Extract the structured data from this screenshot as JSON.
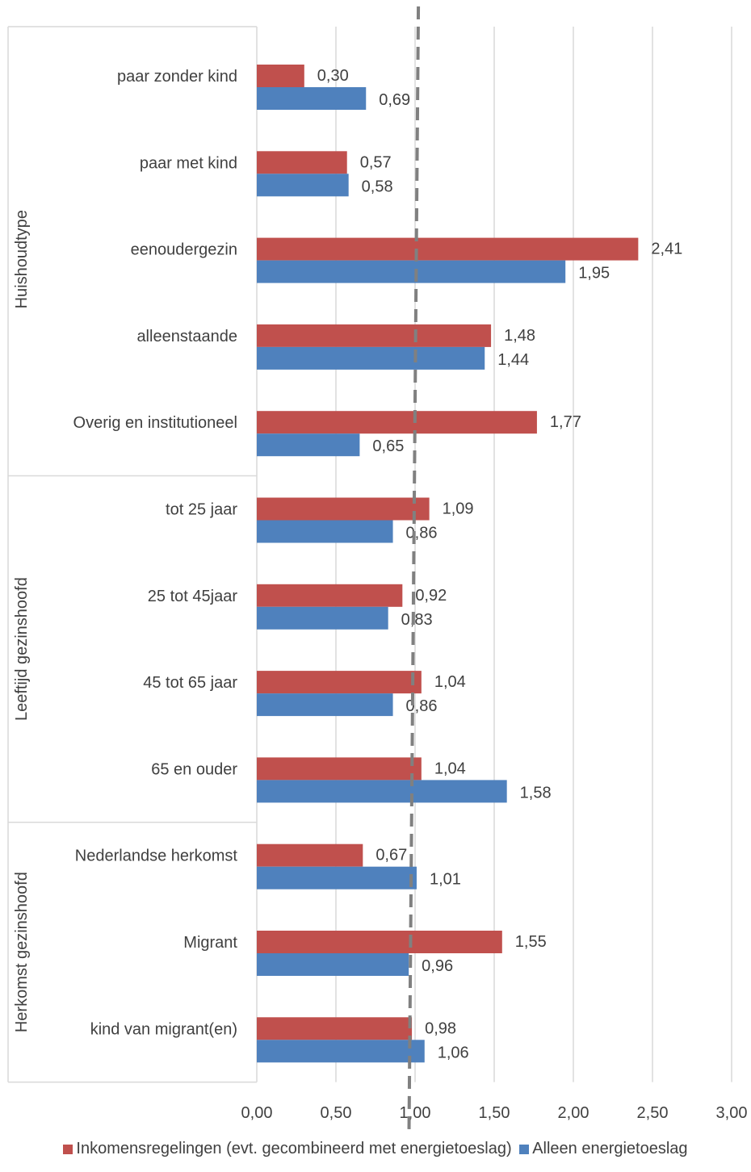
{
  "chart_data": {
    "type": "bar",
    "orientation": "horizontal",
    "groups": [
      {
        "label": "Huishoudtype",
        "categories": [
          "paar zonder kind",
          "paar met kind",
          "eenoudergezin",
          "alleenstaande",
          "Overig en institutioneel"
        ]
      },
      {
        "label": "Leeftijd gezinshoofd",
        "categories": [
          "tot 25 jaar",
          "25 tot 45jaar",
          "45 tot 65 jaar",
          "65 en ouder"
        ]
      },
      {
        "label": "Herkomst gezinshoofd",
        "categories": [
          "Nederlandse herkomst",
          "Migrant",
          "kind van migrant(en)"
        ]
      }
    ],
    "categories": [
      "paar zonder kind",
      "paar met kind",
      "eenoudergezin",
      "alleenstaande",
      "Overig en institutioneel",
      "tot 25 jaar",
      "25 tot 45jaar",
      "45 tot 65 jaar",
      "65 en ouder",
      "Nederlandse herkomst",
      "Migrant",
      "kind van migrant(en)"
    ],
    "series": [
      {
        "name": "Inkomensregelingen (evt. gecombineerd met energietoeslag)",
        "color": "#c0504d",
        "values": [
          0.3,
          0.57,
          2.41,
          1.48,
          1.77,
          1.09,
          0.92,
          1.04,
          1.04,
          0.67,
          1.55,
          0.98
        ],
        "labels": [
          "0,30",
          "0,57",
          "2,41",
          "1,48",
          "1,77",
          "1,09",
          "0,92",
          "1,04",
          "1,04",
          "0,67",
          "1,55",
          "0,98"
        ]
      },
      {
        "name": "Alleen energietoeslag",
        "color": "#4f81bd",
        "values": [
          0.69,
          0.58,
          1.95,
          1.44,
          0.65,
          0.86,
          0.83,
          0.86,
          1.58,
          1.01,
          0.96,
          1.06
        ],
        "labels": [
          "0,69",
          "0,58",
          "1,95",
          "1,44",
          "0,65",
          "0,86",
          "0,83",
          "0,86",
          "1,58",
          "1,01",
          "0,96",
          "1,06"
        ]
      }
    ],
    "xlim": [
      0,
      3
    ],
    "x_ticks": [
      0,
      0.5,
      1,
      1.5,
      2,
      2.5,
      3
    ],
    "x_tick_labels": [
      "0,00",
      "0,50",
      "1,00",
      "1,50",
      "2,00",
      "2,50",
      "3,00"
    ],
    "reference_line": {
      "value": 0.98,
      "style": "dashed",
      "color": "#808080"
    },
    "grid": true,
    "legend_position": "bottom",
    "title": "",
    "xlabel": "",
    "ylabel": ""
  }
}
